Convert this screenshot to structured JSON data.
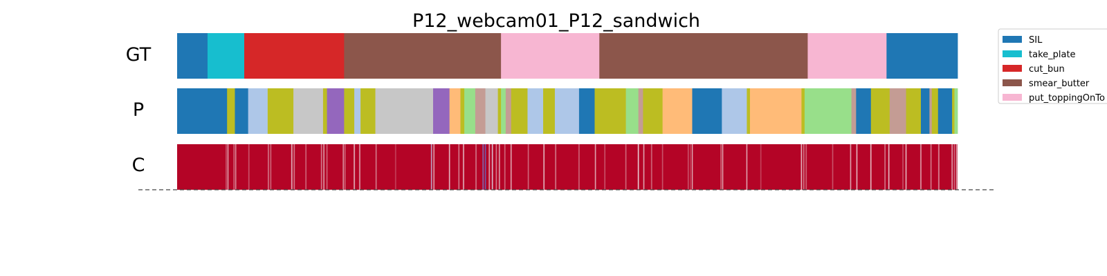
{
  "chart_data": {
    "type": "segmentation-timeline",
    "title": "P12_webcam01_P12_sandwich",
    "x_range": [
      0,
      1000
    ],
    "row_labels": [
      "GT",
      "P",
      "C"
    ],
    "legend": {
      "placement": "top-right",
      "entries": [
        {
          "label": "SIL",
          "color": "#1f77b4"
        },
        {
          "label": "take_plate",
          "color": "#17becf"
        },
        {
          "label": "cut_bun",
          "color": "#d62728"
        },
        {
          "label": "smear_butter",
          "color": "#8c564b"
        },
        {
          "label": "put_toppingOnTo",
          "color": "#f7b6d2"
        }
      ]
    },
    "colors": {
      "blue": "#1f77b4",
      "cyan": "#17becf",
      "red": "#d62728",
      "brown": "#8c564b",
      "pink": "#f7b6d2",
      "olive": "#bcbd22",
      "lightblue": "#aec7e8",
      "gray": "#c7c7c7",
      "purple": "#9467bd",
      "orange": "#ffbb78",
      "lightgreen": "#98df8a",
      "rosybrown": "#c49c94"
    },
    "gt_segments": [
      [
        0,
        39,
        "blue"
      ],
      [
        39,
        86,
        "cyan"
      ],
      [
        86,
        214,
        "red"
      ],
      [
        214,
        415,
        "brown"
      ],
      [
        415,
        541,
        "pink"
      ],
      [
        541,
        808,
        "brown"
      ],
      [
        808,
        909,
        "pink"
      ],
      [
        909,
        1000,
        "blue"
      ]
    ],
    "p_segments": [
      [
        0,
        64,
        "blue"
      ],
      [
        64,
        74,
        "olive"
      ],
      [
        74,
        91,
        "blue"
      ],
      [
        91,
        116,
        "lightblue"
      ],
      [
        116,
        149,
        "olive"
      ],
      [
        149,
        187,
        "gray"
      ],
      [
        187,
        192,
        "olive"
      ],
      [
        192,
        214,
        "purple"
      ],
      [
        214,
        227,
        "olive"
      ],
      [
        227,
        235,
        "lightblue"
      ],
      [
        235,
        254,
        "olive"
      ],
      [
        254,
        328,
        "gray"
      ],
      [
        328,
        349,
        "purple"
      ],
      [
        349,
        363,
        "orange"
      ],
      [
        363,
        368,
        "olive"
      ],
      [
        368,
        382,
        "lightgreen"
      ],
      [
        382,
        395,
        "rosybrown"
      ],
      [
        395,
        411,
        "gray"
      ],
      [
        411,
        415,
        "olive"
      ],
      [
        415,
        421,
        "lightgreen"
      ],
      [
        421,
        428,
        "rosybrown"
      ],
      [
        428,
        449,
        "olive"
      ],
      [
        449,
        469,
        "lightblue"
      ],
      [
        469,
        484,
        "olive"
      ],
      [
        484,
        515,
        "lightblue"
      ],
      [
        515,
        535,
        "blue"
      ],
      [
        535,
        575,
        "olive"
      ],
      [
        575,
        591,
        "lightgreen"
      ],
      [
        591,
        597,
        "rosybrown"
      ],
      [
        597,
        622,
        "olive"
      ],
      [
        622,
        660,
        "orange"
      ],
      [
        660,
        698,
        "blue"
      ],
      [
        698,
        730,
        "lightblue"
      ],
      [
        730,
        734,
        "olive"
      ],
      [
        734,
        800,
        "orange"
      ],
      [
        800,
        804,
        "olive"
      ],
      [
        804,
        864,
        "lightgreen"
      ],
      [
        864,
        870,
        "rosybrown"
      ],
      [
        870,
        889,
        "blue"
      ],
      [
        889,
        913,
        "olive"
      ],
      [
        913,
        934,
        "rosybrown"
      ],
      [
        934,
        953,
        "olive"
      ],
      [
        953,
        964,
        "blue"
      ],
      [
        964,
        967,
        "rosybrown"
      ],
      [
        967,
        975,
        "olive"
      ],
      [
        975,
        993,
        "blue"
      ],
      [
        993,
        996,
        "olive"
      ],
      [
        996,
        1000,
        "lightgreen"
      ]
    ],
    "c_scale": {
      "low": "#3b4cc0",
      "mid": "#f2f2f2",
      "high": "#b40426"
    },
    "c_dips": [
      [
        63,
        0.75
      ],
      [
        65,
        0.55
      ],
      [
        73,
        0.7
      ],
      [
        75,
        0.6
      ],
      [
        92,
        0.8
      ],
      [
        117,
        0.7
      ],
      [
        120,
        0.75
      ],
      [
        147,
        0.55
      ],
      [
        150,
        0.7
      ],
      [
        165,
        0.75
      ],
      [
        185,
        0.7
      ],
      [
        188,
        0.6
      ],
      [
        192,
        0.75
      ],
      [
        213,
        0.6
      ],
      [
        215,
        0.7
      ],
      [
        227,
        0.55
      ],
      [
        234,
        0.6
      ],
      [
        255,
        0.7
      ],
      [
        280,
        0.85
      ],
      [
        326,
        0.35
      ],
      [
        329,
        0.6
      ],
      [
        349,
        0.55
      ],
      [
        361,
        0.7
      ],
      [
        367,
        0.55
      ],
      [
        383,
        0.7
      ],
      [
        392,
        0.15
      ],
      [
        395,
        0.1
      ],
      [
        400,
        0.6
      ],
      [
        404,
        0.45
      ],
      [
        409,
        0.7
      ],
      [
        413,
        0.6
      ],
      [
        420,
        0.75
      ],
      [
        428,
        0.6
      ],
      [
        450,
        0.75
      ],
      [
        470,
        0.55
      ],
      [
        485,
        0.7
      ],
      [
        515,
        0.75
      ],
      [
        536,
        0.6
      ],
      [
        548,
        0.8
      ],
      [
        575,
        0.75
      ],
      [
        591,
        0.5
      ],
      [
        598,
        0.6
      ],
      [
        608,
        0.75
      ],
      [
        622,
        0.8
      ],
      [
        655,
        0.8
      ],
      [
        658,
        0.85
      ],
      [
        660,
        0.55
      ],
      [
        697,
        0.7
      ],
      [
        699,
        0.55
      ],
      [
        730,
        0.6
      ],
      [
        748,
        0.85
      ],
      [
        800,
        0.55
      ],
      [
        803,
        0.7
      ],
      [
        806,
        0.75
      ],
      [
        840,
        0.8
      ],
      [
        863,
        0.6
      ],
      [
        871,
        0.55
      ],
      [
        889,
        0.55
      ],
      [
        907,
        0.7
      ],
      [
        912,
        0.55
      ],
      [
        930,
        0.8
      ],
      [
        934,
        0.55
      ],
      [
        953,
        0.6
      ],
      [
        966,
        0.7
      ],
      [
        976,
        0.65
      ],
      [
        993,
        0.6
      ],
      [
        996,
        0.75
      ],
      [
        999,
        0.55
      ]
    ]
  }
}
